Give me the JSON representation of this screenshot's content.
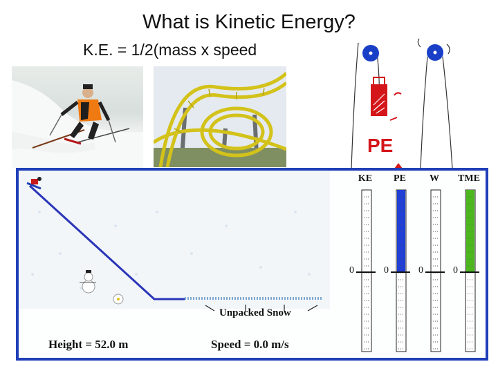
{
  "slide": {
    "title": "What is Kinetic Energy?",
    "formula": "K.E. = 1/2(mass x speed"
  },
  "pendulum": {
    "label": "PE",
    "accent_color": "#1a3fc7",
    "label_color": "#d4161a"
  },
  "simulation": {
    "height_label": "Height = 52.0 m",
    "speed_label": "Speed =  0.0  m/s",
    "surface_label": "Unpacked Snow",
    "track_color": "#2a35b8",
    "frame_color": "#1f3fb8",
    "energy_bars": [
      {
        "label": "KE",
        "zero": "0",
        "fill_fraction": 0.0,
        "color": "#1f3fd6"
      },
      {
        "label": "PE",
        "zero": "0",
        "fill_fraction": 1.0,
        "color": "#1f3fd6"
      },
      {
        "label": "W",
        "zero": "0",
        "fill_fraction": 0.0,
        "color": "#1f3fd6"
      },
      {
        "label": "TME",
        "zero": "0",
        "fill_fraction": 1.0,
        "color": "#4cb81e"
      }
    ]
  }
}
